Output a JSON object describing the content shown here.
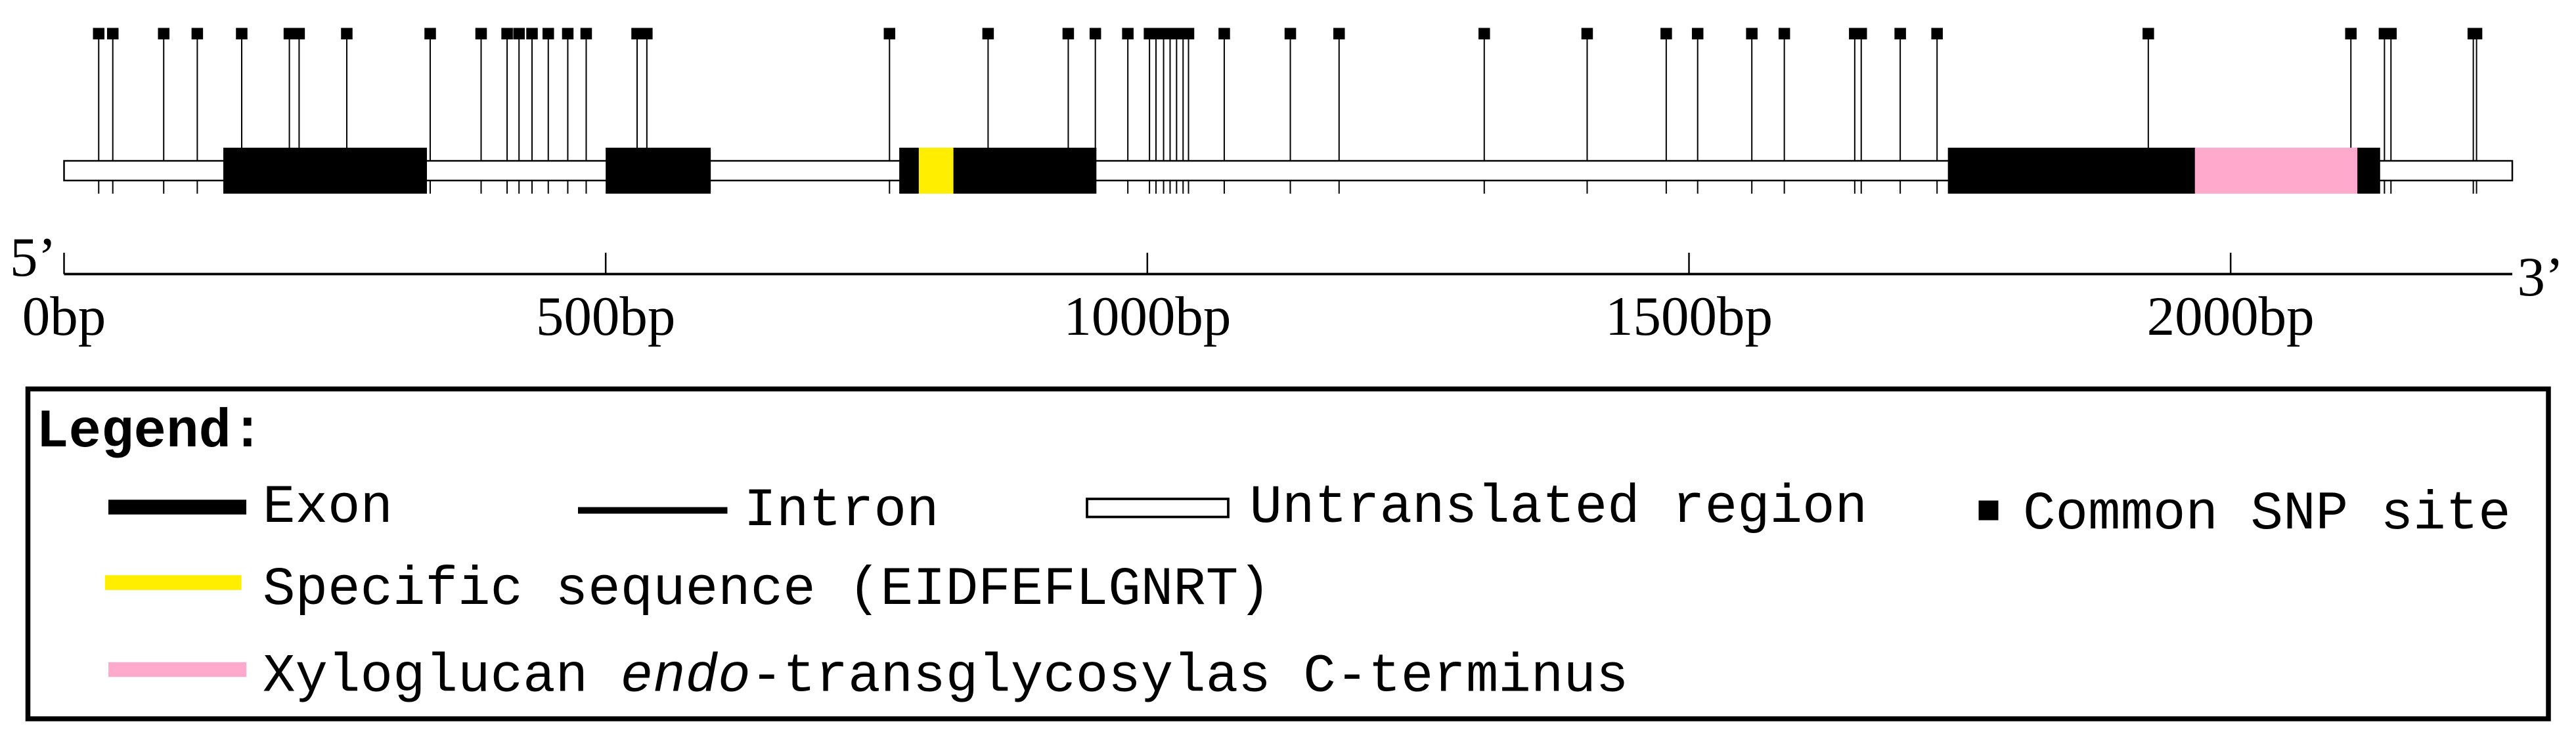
{
  "axis": {
    "xlim": [
      0,
      2260
    ],
    "ticks": [
      {
        "value": 0,
        "label": "0bp"
      },
      {
        "value": 500,
        "label": "500bp"
      },
      {
        "value": 1000,
        "label": "1000bp"
      },
      {
        "value": 1500,
        "label": "1500bp"
      },
      {
        "value": 2000,
        "label": "2000bp"
      }
    ],
    "start_label": "5’",
    "end_label": "3’"
  },
  "utr": {
    "start": 0,
    "end": 2260
  },
  "exons": [
    {
      "start": 147,
      "end": 335
    },
    {
      "start": 500,
      "end": 597
    },
    {
      "start": 771,
      "end": 953
    },
    {
      "start": 1739,
      "end": 2138
    }
  ],
  "specific_sequence": {
    "start": 789,
    "end": 821,
    "color": "#ffee00"
  },
  "xet_domain": {
    "start": 1967,
    "end": 2117,
    "color": "#ffaacc"
  },
  "snps": [
    32,
    45,
    92,
    123,
    164,
    208,
    217,
    261,
    338,
    385,
    409,
    420,
    432,
    447,
    465,
    482,
    529,
    538,
    762,
    853,
    927,
    952,
    982,
    1002,
    1008,
    1015,
    1021,
    1027,
    1033,
    1038,
    1071,
    1132,
    1177,
    1311,
    1406,
    1479,
    1508,
    1558,
    1588,
    1653,
    1659,
    1695,
    1729,
    1924,
    2111,
    2142,
    2148,
    2224,
    2227
  ],
  "legend": {
    "title": "Legend:",
    "items": [
      {
        "label": "Exon"
      },
      {
        "label": "Intron"
      },
      {
        "label": "Untranslated region"
      },
      {
        "label": "Common SNP site"
      },
      {
        "label": "Specific sequence (EIDFEFLGNRT)"
      },
      {
        "label_parts": [
          "Xyloglucan ",
          "endo",
          "-transglycosylas C-terminus"
        ]
      }
    ]
  }
}
